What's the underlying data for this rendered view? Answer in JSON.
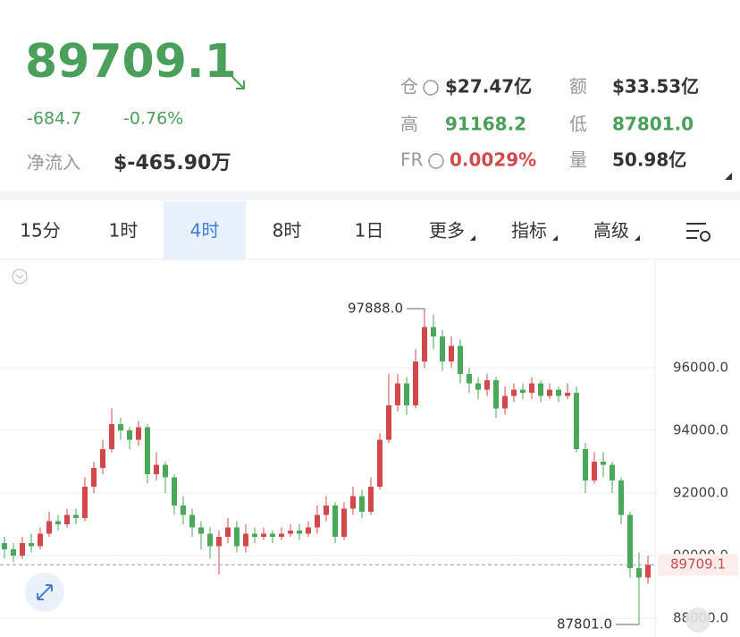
{
  "header": {
    "price": "89709.1",
    "change": "-684.7",
    "change_pct": "-0.76%",
    "net_inflow_label": "净流入",
    "net_inflow": "$-465.90万"
  },
  "stats": [
    {
      "label": "仓",
      "value": "$27.47亿"
    },
    {
      "label": "额",
      "value": "$33.53亿"
    },
    {
      "label": "高",
      "value": "91168.2"
    },
    {
      "label": "低",
      "value": "87801.0"
    },
    {
      "label": "FR",
      "value": "0.0029%"
    },
    {
      "label": "量",
      "value": "50.98亿"
    }
  ],
  "tabs": [
    "15分",
    "1时",
    "4时",
    "8时",
    "1日",
    "更多",
    "指标",
    "高级"
  ],
  "active_tab": 2,
  "chart_data": {
    "type": "candlestick",
    "up_color": "#d2494c",
    "down_color": "#4aa85a",
    "open": [
      90400,
      90200,
      90000,
      90400,
      90300,
      90700,
      91100,
      91000,
      91300,
      91200,
      92200,
      92800,
      93400,
      94200,
      94000,
      93700,
      94100,
      92600,
      92900,
      92500,
      91600,
      91300,
      90900,
      90700,
      90300,
      90600,
      90900,
      90300,
      90700,
      90600,
      90700,
      90600,
      90700,
      90800,
      90700,
      90900,
      91300,
      91600,
      90600,
      91500,
      91900,
      91400,
      92200,
      93700,
      94800,
      95500,
      94800,
      96200,
      97300,
      97000,
      96200,
      96700,
      95800,
      95500,
      95300,
      95600,
      94700,
      95100,
      95300,
      95200,
      95500,
      95100,
      95300,
      95100,
      95200,
      93400,
      92400,
      93000,
      92900,
      92400,
      91300,
      89600,
      89300
    ],
    "high": [
      90600,
      90400,
      90600,
      90700,
      90900,
      91400,
      91300,
      91500,
      91500,
      92500,
      93000,
      93700,
      94700,
      94400,
      94100,
      94300,
      94200,
      93300,
      93000,
      92600,
      91900,
      91500,
      91100,
      90900,
      90800,
      91200,
      91100,
      91000,
      90900,
      90900,
      90800,
      90900,
      91000,
      91000,
      91100,
      91600,
      91900,
      91700,
      91700,
      92200,
      92100,
      92500,
      93900,
      95800,
      95800,
      95700,
      96600,
      97888,
      97700,
      97200,
      97000,
      96900,
      96000,
      95700,
      95800,
      95700,
      95400,
      95500,
      95500,
      95700,
      95600,
      95500,
      95400,
      95500,
      95400,
      93600,
      93300,
      93300,
      93000,
      92500,
      91400,
      90100,
      90000
    ],
    "low": [
      89900,
      89800,
      89900,
      90100,
      90200,
      90600,
      90800,
      90900,
      91000,
      91100,
      92000,
      92600,
      93300,
      93700,
      93400,
      93500,
      92300,
      92400,
      92000,
      91300,
      91000,
      90600,
      90200,
      89900,
      89400,
      90400,
      90100,
      90100,
      90400,
      90500,
      90400,
      90500,
      90600,
      90500,
      90600,
      90700,
      91100,
      90400,
      90500,
      91300,
      91200,
      91300,
      92100,
      93600,
      94600,
      94500,
      94700,
      96000,
      96600,
      95900,
      96000,
      95500,
      95200,
      95000,
      95100,
      94400,
      94500,
      94900,
      95000,
      95000,
      94900,
      95000,
      94900,
      95000,
      93300,
      92000,
      92300,
      92500,
      92000,
      91000,
      89300,
      87801,
      89100
    ],
    "close": [
      90200,
      90000,
      90400,
      90300,
      90700,
      91100,
      91000,
      91300,
      91200,
      92200,
      92800,
      93400,
      94200,
      94000,
      93700,
      94100,
      92600,
      92900,
      92500,
      91600,
      91300,
      90900,
      90700,
      90300,
      90600,
      90900,
      90300,
      90700,
      90600,
      90700,
      90600,
      90700,
      90800,
      90700,
      90900,
      91300,
      91600,
      90600,
      91500,
      91900,
      91400,
      92200,
      93700,
      94800,
      95500,
      94800,
      96200,
      97300,
      97000,
      96200,
      96700,
      95800,
      95500,
      95300,
      95600,
      94700,
      95100,
      95300,
      95200,
      95500,
      95100,
      95300,
      95100,
      95200,
      93400,
      92400,
      93000,
      92900,
      92400,
      91300,
      89600,
      89300,
      89709.1
    ],
    "ylim": [
      87400,
      99460
    ],
    "yticks": [
      {
        "value": 88000,
        "label": "88000.0"
      },
      {
        "value": 90000,
        "label": "90000.0"
      },
      {
        "value": 92000,
        "label": "92000.0"
      },
      {
        "value": 94000,
        "label": "94000.0"
      },
      {
        "value": 96000,
        "label": "96000.0"
      }
    ],
    "grid": true,
    "high_label": "97888.0",
    "low_label": "87801.0",
    "last_label": "89709.1"
  }
}
